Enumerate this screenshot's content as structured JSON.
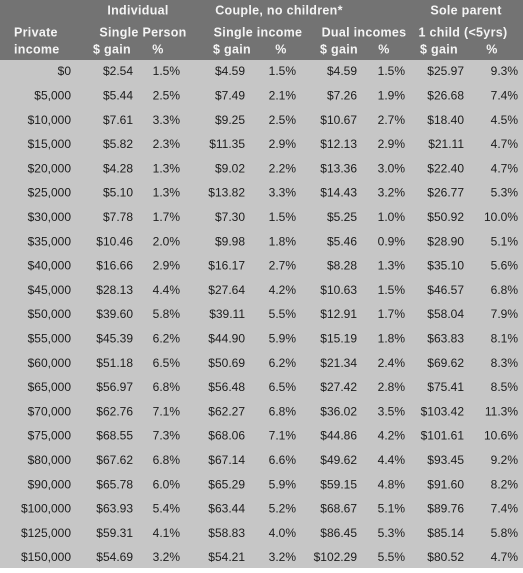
{
  "header": {
    "groups": [
      "Individual",
      "Couple, no children*",
      "Sole parent"
    ],
    "subgroups": [
      "Private",
      "Single Person",
      "Single income",
      "Dual incomes",
      "1 child (<5yrs)"
    ],
    "columns": [
      "income",
      "$ gain",
      "%",
      "$ gain",
      "%",
      "$ gain",
      "%",
      "$ gain",
      "%"
    ]
  },
  "table": {
    "rows": [
      [
        "$0",
        "$2.54",
        "1.5%",
        "$4.59",
        "1.5%",
        "$4.59",
        "1.5%",
        "$25.97",
        "9.3%"
      ],
      [
        "$5,000",
        "$5.44",
        "2.5%",
        "$7.49",
        "2.1%",
        "$7.26",
        "1.9%",
        "$26.68",
        "7.4%"
      ],
      [
        "$10,000",
        "$7.61",
        "3.3%",
        "$9.25",
        "2.5%",
        "$10.67",
        "2.7%",
        "$18.40",
        "4.5%"
      ],
      [
        "$15,000",
        "$5.82",
        "2.3%",
        "$11.35",
        "2.9%",
        "$12.13",
        "2.9%",
        "$21.11",
        "4.7%"
      ],
      [
        "$20,000",
        "$4.28",
        "1.3%",
        "$9.02",
        "2.2%",
        "$13.36",
        "3.0%",
        "$22.40",
        "4.7%"
      ],
      [
        "$25,000",
        "$5.10",
        "1.3%",
        "$13.82",
        "3.3%",
        "$14.43",
        "3.2%",
        "$26.77",
        "5.3%"
      ],
      [
        "$30,000",
        "$7.78",
        "1.7%",
        "$7.30",
        "1.5%",
        "$5.25",
        "1.0%",
        "$50.92",
        "10.0%"
      ],
      [
        "$35,000",
        "$10.46",
        "2.0%",
        "$9.98",
        "1.8%",
        "$5.46",
        "0.9%",
        "$28.90",
        "5.1%"
      ],
      [
        "$40,000",
        "$16.66",
        "2.9%",
        "$16.17",
        "2.7%",
        "$8.28",
        "1.3%",
        "$35.10",
        "5.6%"
      ],
      [
        "$45,000",
        "$28.13",
        "4.4%",
        "$27.64",
        "4.2%",
        "$10.63",
        "1.5%",
        "$46.57",
        "6.8%"
      ],
      [
        "$50,000",
        "$39.60",
        "5.8%",
        "$39.11",
        "5.5%",
        "$12.91",
        "1.7%",
        "$58.04",
        "7.9%"
      ],
      [
        "$55,000",
        "$45.39",
        "6.2%",
        "$44.90",
        "5.9%",
        "$15.19",
        "1.8%",
        "$63.83",
        "8.1%"
      ],
      [
        "$60,000",
        "$51.18",
        "6.5%",
        "$50.69",
        "6.2%",
        "$21.34",
        "2.4%",
        "$69.62",
        "8.3%"
      ],
      [
        "$65,000",
        "$56.97",
        "6.8%",
        "$56.48",
        "6.5%",
        "$27.42",
        "2.8%",
        "$75.41",
        "8.5%"
      ],
      [
        "$70,000",
        "$62.76",
        "7.1%",
        "$62.27",
        "6.8%",
        "$36.02",
        "3.5%",
        "$103.42",
        "11.3%"
      ],
      [
        "$75,000",
        "$68.55",
        "7.3%",
        "$68.06",
        "7.1%",
        "$44.86",
        "4.2%",
        "$101.61",
        "10.6%"
      ],
      [
        "$80,000",
        "$67.62",
        "6.8%",
        "$67.14",
        "6.6%",
        "$49.62",
        "4.4%",
        "$93.45",
        "9.2%"
      ],
      [
        "$90,000",
        "$65.78",
        "6.0%",
        "$65.29",
        "5.9%",
        "$59.15",
        "4.8%",
        "$91.60",
        "8.2%"
      ],
      [
        "$100,000",
        "$63.93",
        "5.4%",
        "$63.44",
        "5.2%",
        "$68.67",
        "5.1%",
        "$89.76",
        "7.4%"
      ],
      [
        "$125,000",
        "$59.31",
        "4.1%",
        "$58.83",
        "4.0%",
        "$86.45",
        "5.3%",
        "$85.14",
        "5.8%"
      ],
      [
        "$150,000",
        "$54.69",
        "3.2%",
        "$54.21",
        "3.2%",
        "$102.29",
        "5.5%",
        "$80.52",
        "4.7%"
      ]
    ]
  }
}
